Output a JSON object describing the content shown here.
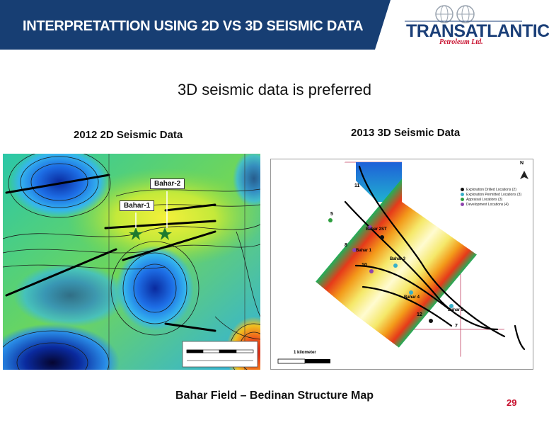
{
  "header": {
    "title": "INTERPRETATTION USING 2D VS 3D SEISMIC DATA",
    "logo_word": "TRANSATLANTIC",
    "logo_sub": "Petroleum Ltd."
  },
  "subtitle": "3D seismic data is preferred",
  "left_panel": {
    "label": "2012 2D Seismic Data",
    "wells": [
      "Bahar-1",
      "Bahar-2"
    ]
  },
  "right_panel": {
    "label": "2013 3D Seismic Data",
    "north": "N",
    "scale_label": "1 kilometer",
    "legend": [
      {
        "label": "Exploration Drilled Locations (2)",
        "color": "#111111"
      },
      {
        "label": "Exploration Permitted Locations (3)",
        "color": "#36b0c9"
      },
      {
        "label": "Appraisal Locations (3)",
        "color": "#2e9e3f"
      },
      {
        "label": "Development Locations (4)",
        "color": "#8e44ad"
      }
    ],
    "well_names": [
      "Bahar 2ST",
      "Bahar 1",
      "Bahar 3",
      "Bahar 4",
      "Bahar 5"
    ],
    "location_numbers": [
      "11",
      "5",
      "8",
      "10",
      "12",
      "7"
    ]
  },
  "caption": "Bahar Field – Bedinan Structure Map",
  "page_number": "29",
  "colors": {
    "header_bg": "#173e73",
    "page_number": "#c8102e"
  }
}
